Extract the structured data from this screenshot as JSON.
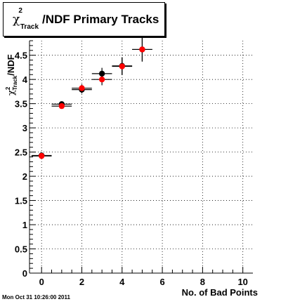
{
  "title": {
    "prefix": "χ",
    "superscript": "2",
    "subscript": "Track",
    "suffix": "/NDF Primary Tracks"
  },
  "timestamp": "Mon Oct 31 10:26:00 2011",
  "chart_data": {
    "type": "scatter",
    "title": "χ²Track/NDF Primary Tracks",
    "xlabel": "No. of Bad Points",
    "ylabel": "χ²Track/NDF",
    "xlim": [
      -0.6,
      10.5
    ],
    "ylim": [
      0,
      4.8
    ],
    "x_ticks": [
      "0",
      "2",
      "4",
      "6",
      "8",
      "10"
    ],
    "y_ticks": [
      "0",
      "0.5",
      "1",
      "1.5",
      "2",
      "2.5",
      "3",
      "3.5",
      "4",
      "4.5"
    ],
    "grid": true,
    "colors": {
      "series_black": "#000000",
      "series_red": "#ff0000"
    },
    "series": [
      {
        "color": "black",
        "x": [
          0,
          1,
          2,
          3,
          4,
          5
        ],
        "y": [
          2.43,
          3.49,
          3.79,
          4.12,
          4.28,
          4.62
        ],
        "xerr": [
          0.5,
          0.5,
          0.5,
          0.5,
          0.5,
          0.5
        ],
        "yerr": [
          0.03,
          0.05,
          0.08,
          0.12,
          0.18,
          0.25
        ]
      },
      {
        "color": "red",
        "x": [
          0,
          1,
          2,
          3,
          4,
          5
        ],
        "y": [
          2.42,
          3.45,
          3.82,
          4.0,
          4.27,
          4.62
        ],
        "xerr": [
          0.5,
          0.5,
          0.5,
          0.5,
          0.5,
          0.5
        ],
        "yerr": [
          0.03,
          0.05,
          0.08,
          0.12,
          0.18,
          0.25
        ]
      }
    ]
  }
}
